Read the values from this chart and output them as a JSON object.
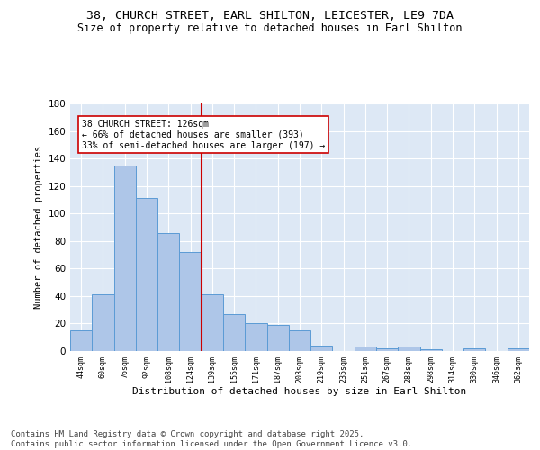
{
  "title1": "38, CHURCH STREET, EARL SHILTON, LEICESTER, LE9 7DA",
  "title2": "Size of property relative to detached houses in Earl Shilton",
  "xlabel": "Distribution of detached houses by size in Earl Shilton",
  "ylabel": "Number of detached properties",
  "categories": [
    "44sqm",
    "60sqm",
    "76sqm",
    "92sqm",
    "108sqm",
    "124sqm",
    "139sqm",
    "155sqm",
    "171sqm",
    "187sqm",
    "203sqm",
    "219sqm",
    "235sqm",
    "251sqm",
    "267sqm",
    "283sqm",
    "298sqm",
    "314sqm",
    "330sqm",
    "346sqm",
    "362sqm"
  ],
  "values": [
    15,
    41,
    135,
    111,
    86,
    72,
    41,
    27,
    20,
    19,
    15,
    4,
    0,
    3,
    2,
    3,
    1,
    0,
    2,
    0,
    2
  ],
  "bar_color": "#aec6e8",
  "bar_edge_color": "#5b9bd5",
  "vline_x": 5.5,
  "vline_color": "#cc0000",
  "annotation_text": "38 CHURCH STREET: 126sqm\n← 66% of detached houses are smaller (393)\n33% of semi-detached houses are larger (197) →",
  "annotation_box_color": "#ffffff",
  "annotation_box_edge": "#cc0000",
  "ylim": [
    0,
    180
  ],
  "yticks": [
    0,
    20,
    40,
    60,
    80,
    100,
    120,
    140,
    160,
    180
  ],
  "bg_color": "#dde8f5",
  "footer": "Contains HM Land Registry data © Crown copyright and database right 2025.\nContains public sector information licensed under the Open Government Licence v3.0.",
  "title_fontsize": 9.5,
  "subtitle_fontsize": 8.5,
  "annotation_fontsize": 7.0,
  "footer_fontsize": 6.5,
  "ylabel_fontsize": 7.5,
  "xlabel_fontsize": 8.0,
  "ytick_fontsize": 7.5,
  "xtick_fontsize": 6.0
}
